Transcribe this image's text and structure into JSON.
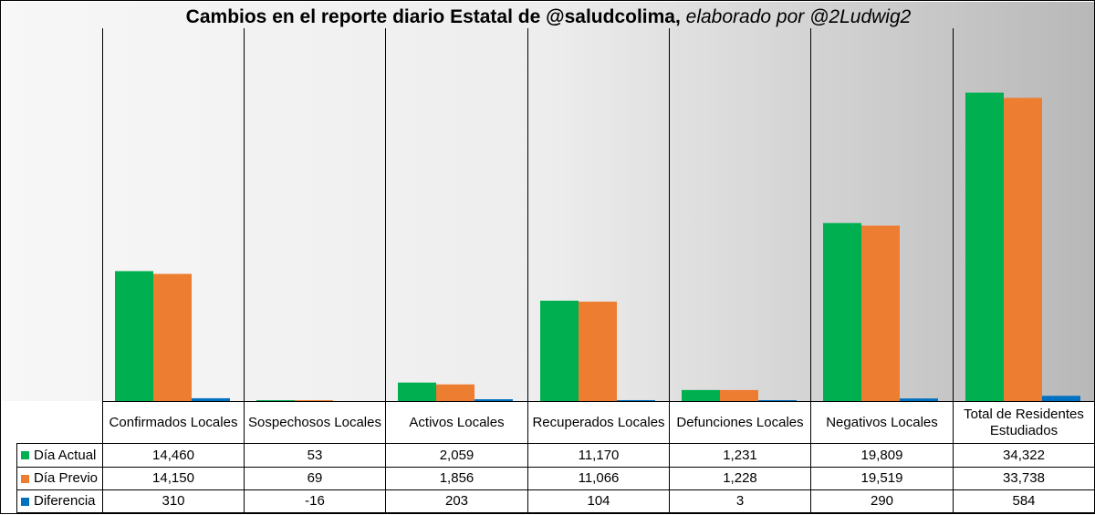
{
  "title": {
    "main": "Cambios en el reporte diario Estatal de @saludcolima,",
    "sub": "elaborado por @2Ludwig2"
  },
  "chart_data": {
    "type": "bar",
    "categories": [
      "Confirmados Locales",
      "Sospechosos Locales",
      "Activos Locales",
      "Recuperados Locales",
      "Defunciones Locales",
      "Negativos Locales",
      "Total de Residentes Estudiados"
    ],
    "series": [
      {
        "name": "Día Actual",
        "color": "#00b050",
        "values": [
          14460,
          53,
          2059,
          11170,
          1231,
          19809,
          34322
        ],
        "labels": [
          "14,460",
          "53",
          "2,059",
          "11,170",
          "1,231",
          "19,809",
          "34,322"
        ]
      },
      {
        "name": "Día Previo",
        "color": "#ed7d31",
        "values": [
          14150,
          69,
          1856,
          11066,
          1228,
          19519,
          33738
        ],
        "labels": [
          "14,150",
          "69",
          "1,856",
          "11,066",
          "1,228",
          "19,519",
          "33,738"
        ]
      },
      {
        "name": "Diferencia",
        "color": "#0070c0",
        "values": [
          310,
          -16,
          203,
          104,
          3,
          290,
          584
        ],
        "labels": [
          "310",
          "-16",
          "203",
          "104",
          "3",
          "290",
          "584"
        ]
      }
    ],
    "ylim": [
      0,
      35500
    ],
    "grid": false,
    "legend": "data-table",
    "background": "gradient-gray"
  }
}
